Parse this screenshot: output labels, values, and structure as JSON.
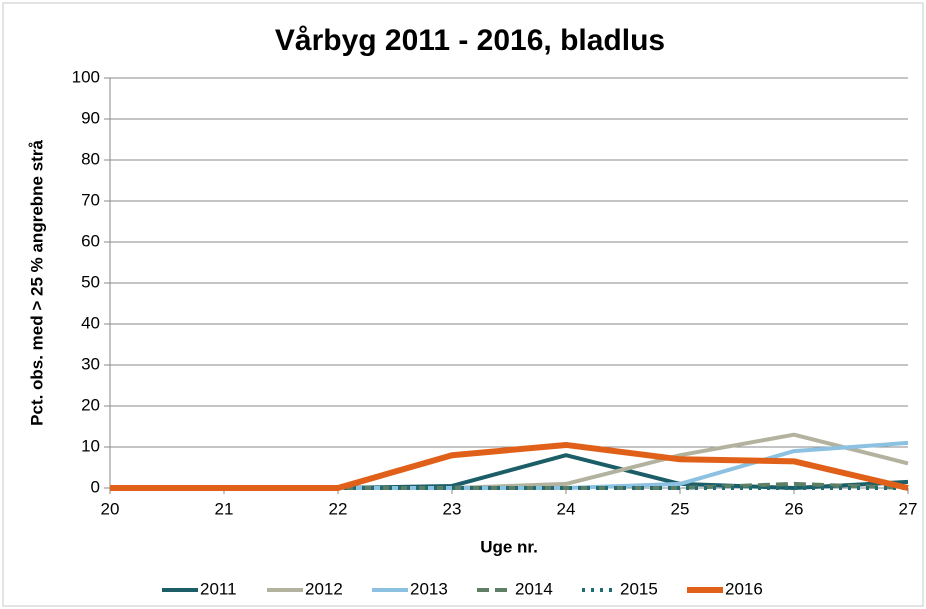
{
  "chart_data": {
    "type": "line",
    "title": "Vårbyg 2011 - 2016, bladlus",
    "x_label": "Uge nr.",
    "y_label": "Pct. obs. med > 25 % angrebne strå",
    "x": [
      20,
      21,
      22,
      23,
      24,
      25,
      26,
      27
    ],
    "xlim": [
      20,
      27
    ],
    "xticks": [
      20,
      21,
      22,
      23,
      24,
      25,
      26,
      27
    ],
    "ylim": [
      0,
      100
    ],
    "yticks": [
      0,
      10,
      20,
      30,
      40,
      50,
      60,
      70,
      80,
      90,
      100
    ],
    "grid": true,
    "legend": "bottom",
    "series": [
      {
        "name": "2011",
        "color": "#1b5e68",
        "line_style": "solid",
        "linewidth": 4,
        "values": [
          0,
          0,
          0,
          0.5,
          8,
          1,
          0,
          1.5
        ]
      },
      {
        "name": "2012",
        "color": "#b3b29e",
        "line_style": "solid",
        "linewidth": 4,
        "values": [
          0,
          0,
          0,
          0,
          1,
          8,
          13,
          6
        ]
      },
      {
        "name": "2013",
        "color": "#8cc1e1",
        "line_style": "solid",
        "linewidth": 4,
        "values": [
          0,
          0,
          0,
          0,
          0,
          1,
          9,
          11
        ]
      },
      {
        "name": "2014",
        "color": "#5e7f63",
        "line_style": "dashed",
        "linewidth": 4,
        "values": [
          0,
          0,
          0,
          0,
          0,
          0,
          1,
          0
        ]
      },
      {
        "name": "2015",
        "color": "#1f6c74",
        "line_style": "dotted",
        "linewidth": 4,
        "values": [
          0,
          0,
          0,
          0,
          0,
          0,
          0,
          0
        ]
      },
      {
        "name": "2016",
        "color": "#e0601a",
        "line_style": "solid",
        "linewidth": 6,
        "values": [
          0,
          0,
          0,
          8,
          10.5,
          7,
          6.5,
          0
        ]
      }
    ]
  }
}
